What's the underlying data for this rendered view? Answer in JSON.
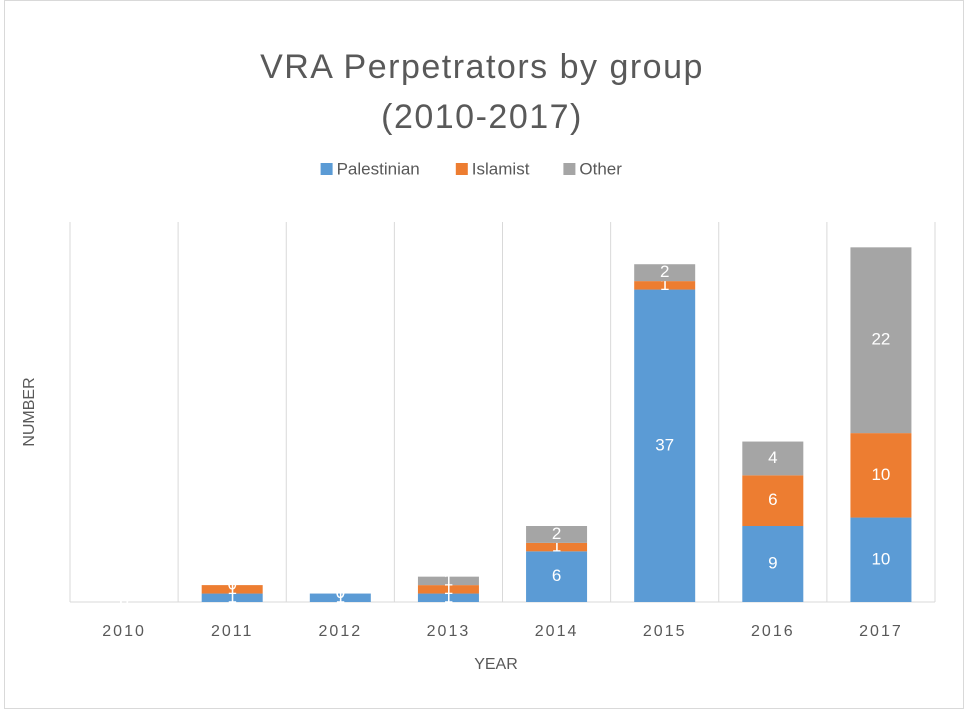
{
  "chart_data": {
    "type": "stacked_bar",
    "title": "VRA Perpetrators by group (2010-2017)",
    "x_label": "YEAR",
    "y_label": "NUMBER",
    "categories": [
      "2010",
      "2011",
      "2012",
      "2013",
      "2014",
      "2015",
      "2016",
      "2017"
    ],
    "series": [
      {
        "name": "Palestinian",
        "color": "#5b9bd5",
        "values": [
          0,
          1,
          1,
          1,
          6,
          37,
          9,
          10
        ]
      },
      {
        "name": "Islamist",
        "color": "#ed7d31",
        "values": [
          0,
          1,
          0,
          1,
          1,
          1,
          6,
          10
        ]
      },
      {
        "name": "Other",
        "color": "#a5a5a5",
        "values": [
          0,
          0,
          0,
          1,
          2,
          2,
          4,
          22
        ]
      }
    ],
    "ylim": [
      0,
      45
    ],
    "grid": true,
    "legend": "top"
  }
}
